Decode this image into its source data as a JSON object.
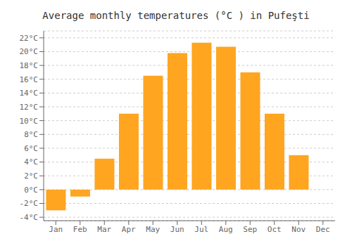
{
  "chart_data": {
    "type": "bar",
    "title": "Average monthly temperatures (°C ) in Pufeşti",
    "categories": [
      "Jan",
      "Feb",
      "Mar",
      "Apr",
      "May",
      "Jun",
      "Jul",
      "Aug",
      "Sep",
      "Oct",
      "Nov",
      "Dec"
    ],
    "values": [
      -3.0,
      -1.0,
      4.5,
      11.0,
      16.5,
      19.8,
      21.3,
      20.7,
      17.0,
      11.0,
      5.0,
      0.0
    ],
    "color": "#FFA520",
    "ylim": [
      -4.5,
      23
    ],
    "yticks": [
      {
        "value": -4,
        "label": "-4°C"
      },
      {
        "value": -2,
        "label": "-2°C"
      },
      {
        "value": 0,
        "label": "0°C"
      },
      {
        "value": 2,
        "label": "2°C"
      },
      {
        "value": 4,
        "label": "4°C"
      },
      {
        "value": 6,
        "label": "6°C"
      },
      {
        "value": 8,
        "label": "8°C"
      },
      {
        "value": 10,
        "label": "10°C"
      },
      {
        "value": 12,
        "label": "12°C"
      },
      {
        "value": 14,
        "label": "14°C"
      },
      {
        "value": 16,
        "label": "16°C"
      },
      {
        "value": 18,
        "label": "18°C"
      },
      {
        "value": 20,
        "label": "20°C"
      },
      {
        "value": 22,
        "label": "22°C"
      }
    ],
    "grid": true
  }
}
